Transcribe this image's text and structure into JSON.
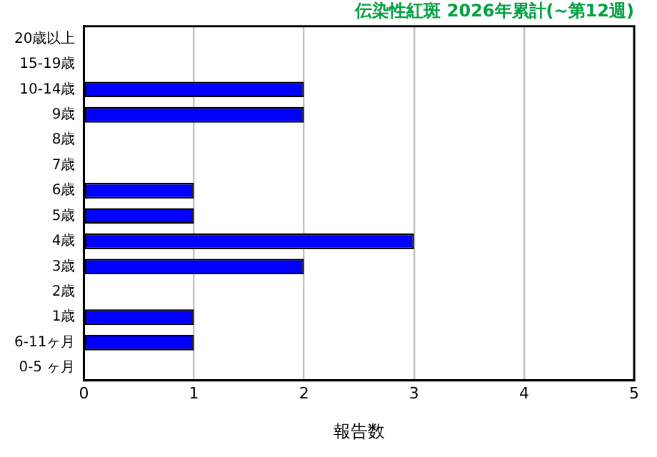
{
  "chart_data": {
    "type": "bar",
    "orientation": "horizontal",
    "title": "伝染性紅斑 2026年累計(~第12週)",
    "xlabel": "報告数",
    "categories": [
      "20歳以上",
      "15-19歳",
      "10-14歳",
      "9歳",
      "8歳",
      "7歳",
      "6歳",
      "5歳",
      "4歳",
      "3歳",
      "2歳",
      "1歳",
      "6-11ヶ月",
      "0-5 ヶ月"
    ],
    "values": [
      0,
      0,
      2,
      2,
      0,
      0,
      1,
      1,
      3,
      2,
      0,
      1,
      1,
      0
    ],
    "color": "#0000ff",
    "xlim": [
      0,
      5
    ],
    "xticks": [
      0,
      1,
      2,
      3,
      4,
      5
    ],
    "grid": "x",
    "legend": false
  }
}
